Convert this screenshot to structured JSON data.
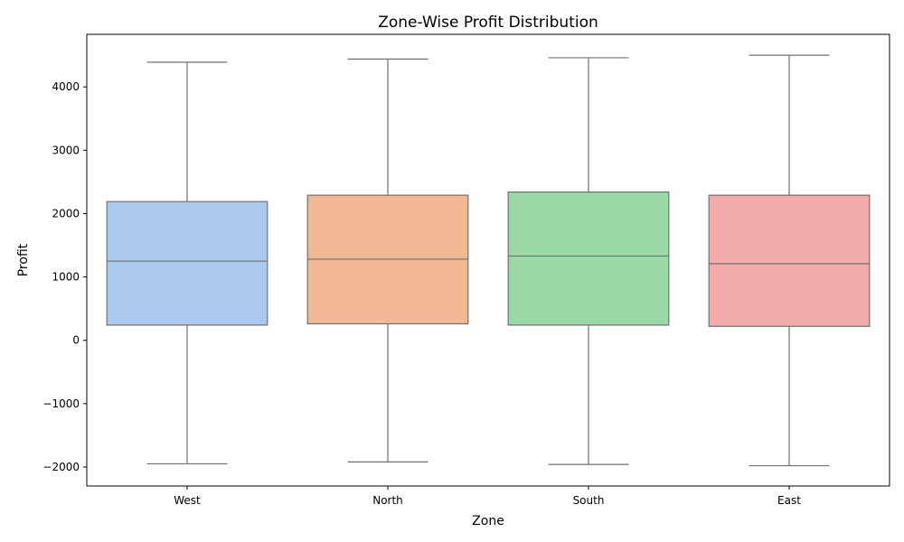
{
  "chart_data": {
    "type": "box",
    "title": "Zone-Wise Profit Distribution",
    "xlabel": "Zone",
    "ylabel": "Profit",
    "ylim": [
      -2300,
      4830
    ],
    "yticks": [
      -2000,
      -1000,
      0,
      1000,
      2000,
      3000,
      4000
    ],
    "ytick_labels": [
      "−2000",
      "−1000",
      "0",
      "1000",
      "2000",
      "3000",
      "4000"
    ],
    "grid": false,
    "categories": [
      "West",
      "North",
      "South",
      "East"
    ],
    "series": [
      {
        "category": "West",
        "min": -1950,
        "q1": 240,
        "median": 1250,
        "q3": 2190,
        "max": 4390,
        "color": "#abc9ed"
      },
      {
        "category": "North",
        "min": -1920,
        "q1": 260,
        "median": 1280,
        "q3": 2290,
        "max": 4440,
        "color": "#f1b893"
      },
      {
        "category": "South",
        "min": -1960,
        "q1": 240,
        "median": 1330,
        "q3": 2340,
        "max": 4460,
        "color": "#9adaa9"
      },
      {
        "category": "East",
        "min": -1980,
        "q1": 220,
        "median": 1210,
        "q3": 2290,
        "max": 4500,
        "color": "#f2aaab"
      }
    ],
    "line_color": "#707070"
  }
}
